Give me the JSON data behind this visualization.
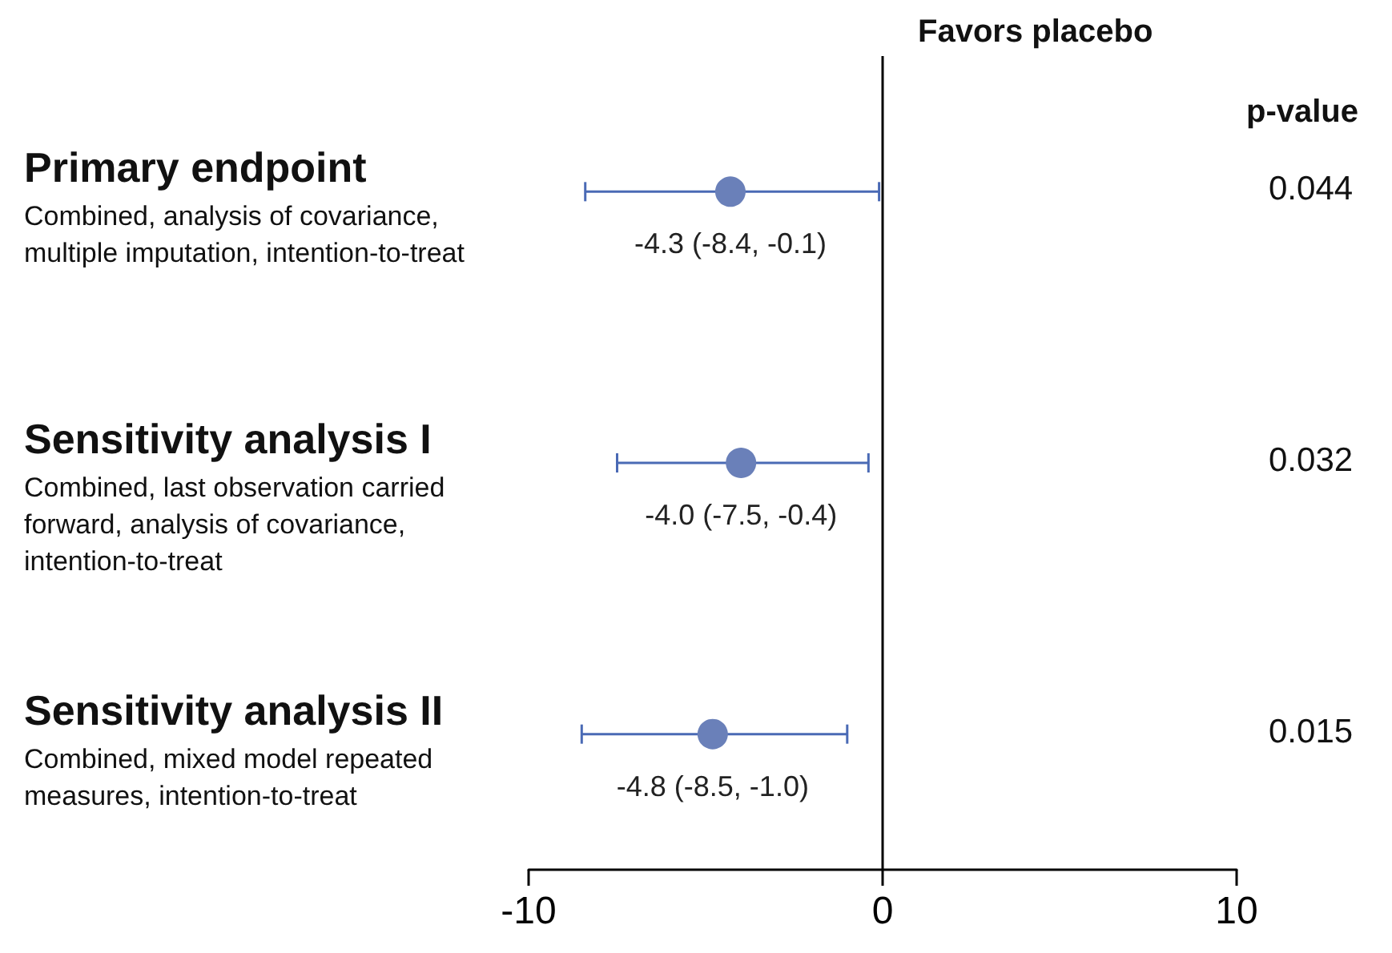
{
  "chart_data": {
    "type": "scatter",
    "orientation": "horizontal",
    "categories": [
      "Primary endpoint",
      "Sensitivity analysis I",
      "Sensitivity analysis II"
    ],
    "values": [
      -4.3,
      -4.0,
      -4.8
    ],
    "errors": [
      [
        -8.4,
        -0.1
      ],
      [
        -7.5,
        -0.4
      ],
      [
        -8.5,
        -1.0
      ]
    ],
    "value_labels": [
      "-4.3 (-8.4, -0.1)",
      "-4.0 (-7.5, -0.4)",
      "-4.8 (-8.5, -1.0)"
    ],
    "color": "#6a80b9",
    "marker": "circle",
    "grid": false,
    "xlim": [
      -10,
      10
    ],
    "xticks": [
      -10,
      0,
      10
    ],
    "ref_lines": [
      {
        "axis": "x",
        "value": 0,
        "color": "#000000",
        "line_style": "solid"
      }
    ],
    "annotations": [
      "Favors placebo",
      "p-value",
      "Combined, analysis of covariance, multiple imputation, intention-to-treat",
      "0.044",
      "Combined, last observation carried forward, analysis of covariance, intention-to-treat",
      "0.032",
      "Combined, mixed model repeated measures, intention-to-treat",
      "0.015"
    ]
  }
}
